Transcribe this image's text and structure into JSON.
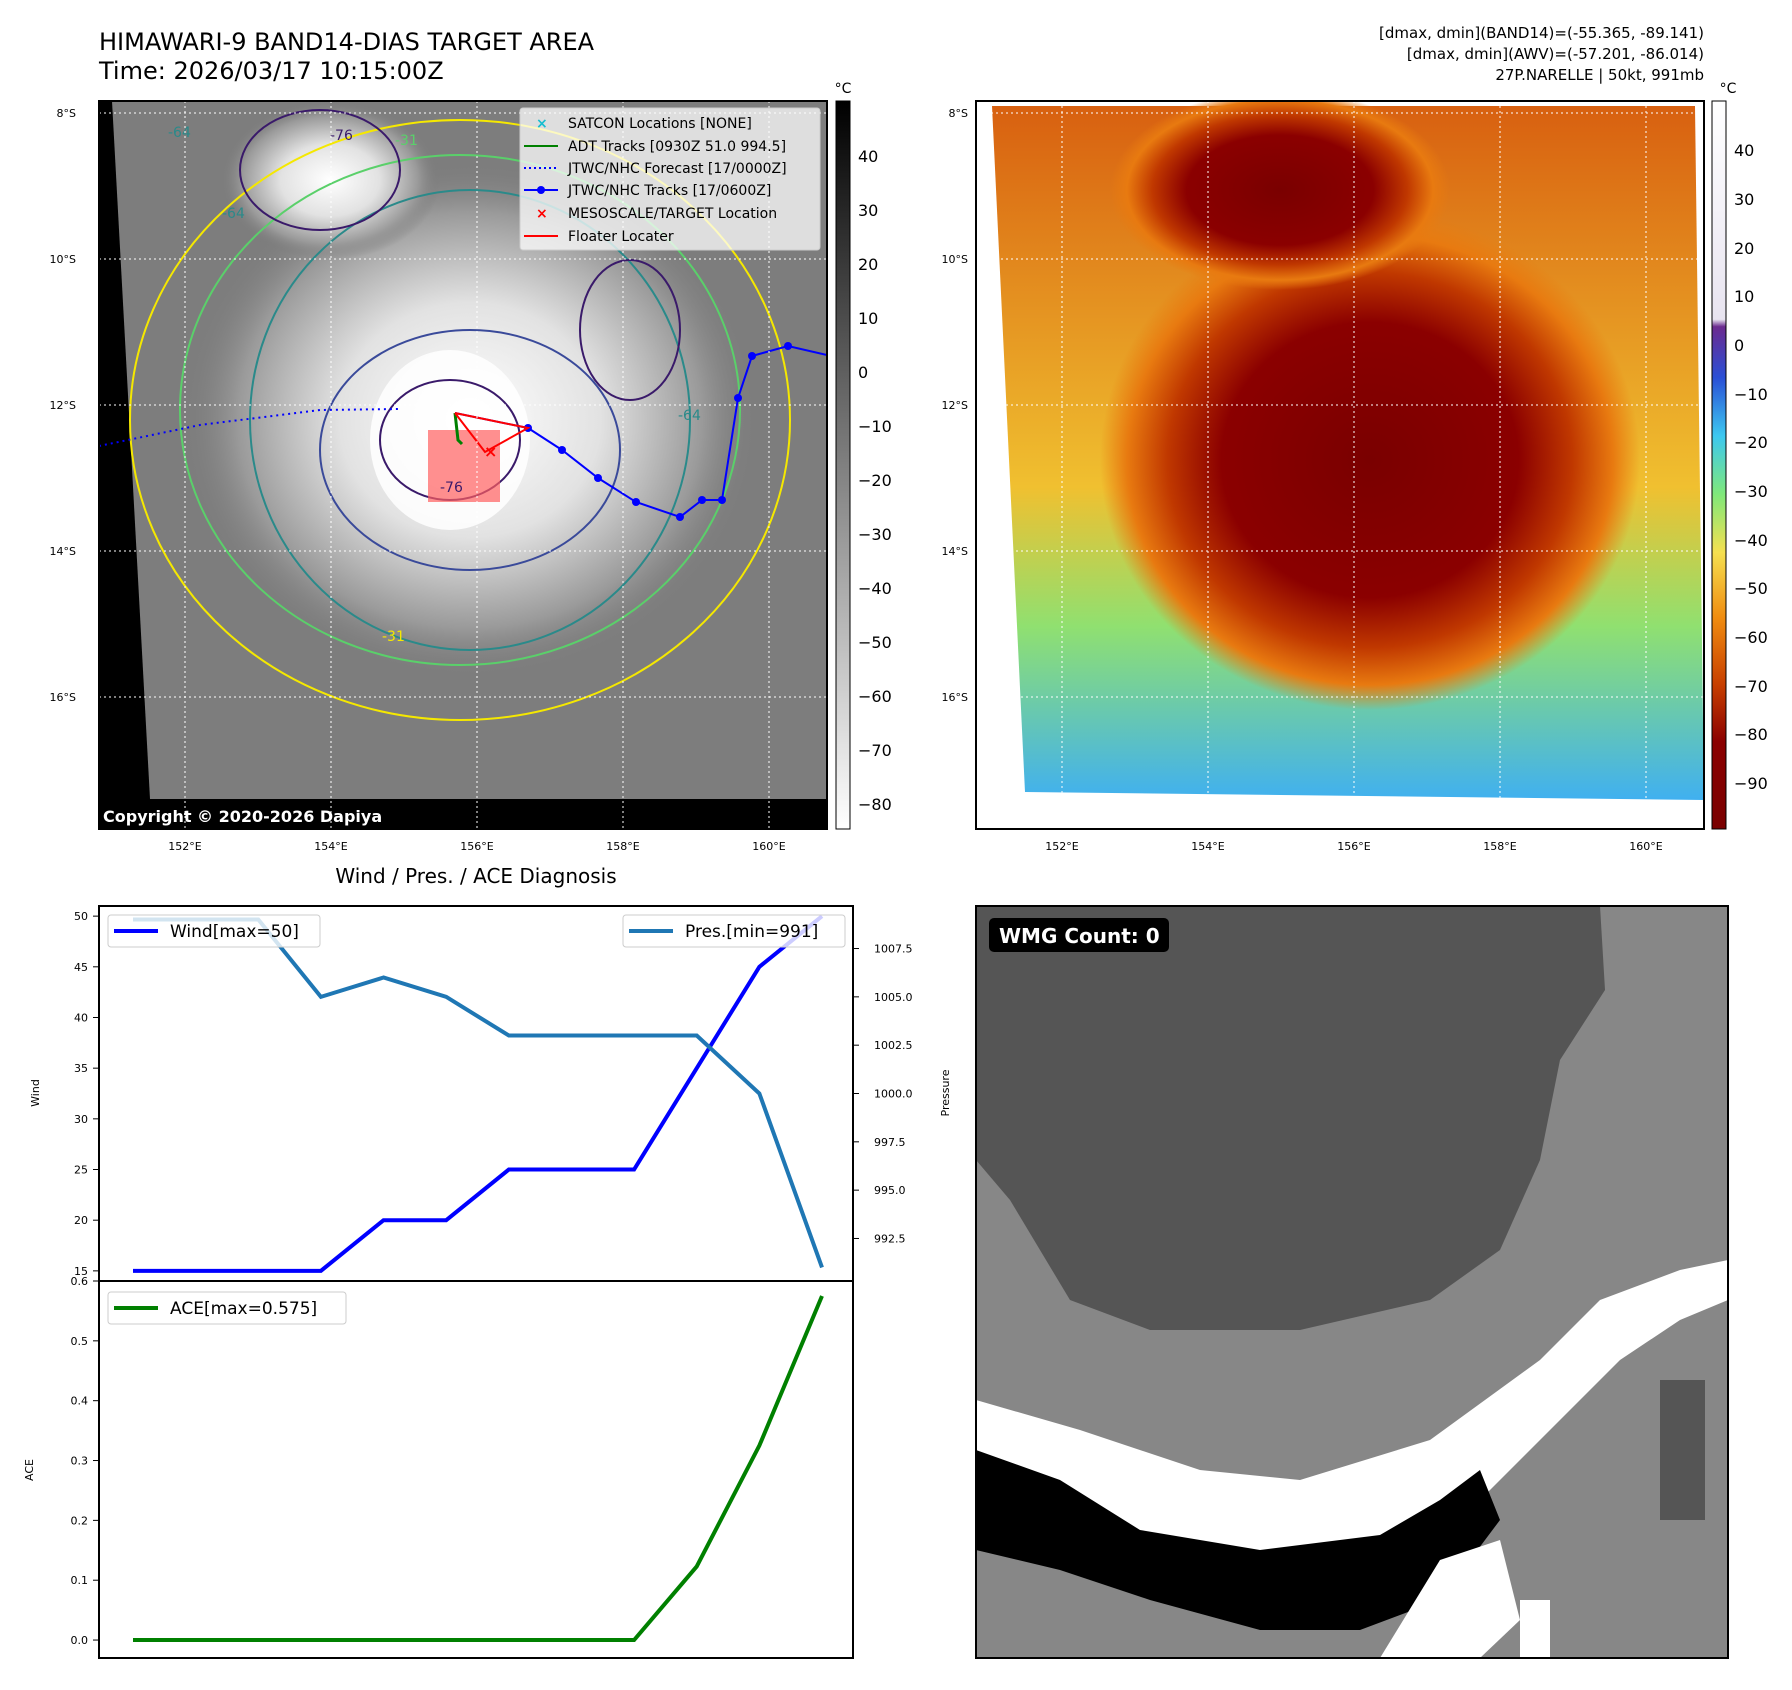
{
  "header": {
    "title": "HIMAWARI-9 BAND14-DIAS TARGET AREA",
    "time": "Time: 2026/03/17 10:15:00Z",
    "stats_band14": "[dmax, dmin](BAND14)=(-55.365, -89.141)",
    "stats_awv": "[dmax, dmin](AWV)=(-57.201, -86.014)",
    "storm": "27P.NARELLE | 50kt, 991mb"
  },
  "map_panel": {
    "copyright": "Copyright © 2020-2026 Dapiya",
    "lat_labels": [
      "8°S",
      "10°S",
      "12°S",
      "14°S",
      "16°S"
    ],
    "lon_labels": [
      "152°E",
      "154°E",
      "156°E",
      "158°E",
      "160°E"
    ],
    "contour_labels": [
      "-64",
      "-76",
      "-31",
      "-64",
      "-76",
      "-31",
      "-64"
    ],
    "legend": [
      {
        "label": "SATCON Locations [NONE]",
        "marker": "x",
        "color": "#17becf"
      },
      {
        "label": "ADT Tracks [0930Z 51.0 994.5]",
        "marker": "line",
        "color": "#008000"
      },
      {
        "label": "JTWC/NHC Forecast [17/0000Z]",
        "marker": "dotted",
        "color": "#0000ff"
      },
      {
        "label": "JTWC/NHC Tracks [17/0600Z]",
        "marker": "line-dot",
        "color": "#0000ff"
      },
      {
        "label": "MESOSCALE/TARGET Location",
        "marker": "x",
        "color": "#ff0000"
      },
      {
        "label": "Floater Locater",
        "marker": "line",
        "color": "#ff0000"
      }
    ],
    "cbar": {
      "unit": "°C",
      "ticks": [
        "40",
        "30",
        "20",
        "10",
        "0",
        "−10",
        "−20",
        "−30",
        "−40",
        "−50",
        "−60",
        "−70",
        "−80"
      ]
    }
  },
  "awv_panel": {
    "lat_labels": [
      "8°S",
      "10°S",
      "12°S",
      "14°S",
      "16°S"
    ],
    "lon_labels": [
      "152°E",
      "154°E",
      "156°E",
      "158°E",
      "160°E"
    ],
    "cbar": {
      "unit": "°C",
      "ticks": [
        "40",
        "30",
        "20",
        "10",
        "0",
        "−10",
        "−20",
        "−30",
        "−40",
        "−50",
        "−60",
        "−70",
        "−80",
        "−90"
      ]
    }
  },
  "wmg_panel": {
    "label": "WMG Count: 0"
  },
  "chart_data": [
    {
      "type": "line",
      "title": "Wind / Pres. / ACE Diagnosis",
      "ylabel": "Wind",
      "ylabel_right": "Pressure",
      "ylim": [
        14,
        51
      ],
      "ylim_right": [
        990.3,
        1009.7
      ],
      "yticks": [
        15,
        20,
        25,
        30,
        35,
        40,
        45,
        50
      ],
      "yticks_right": [
        992.5,
        995.0,
        997.5,
        1000.0,
        1002.5,
        1005.0,
        1007.5
      ],
      "x": [
        0,
        1,
        2,
        3,
        4,
        5,
        6,
        7,
        8,
        9,
        10,
        11
      ],
      "series": [
        {
          "name": "Wind[max=50]",
          "color": "#0000ff",
          "axis": "left",
          "values": [
            15,
            15,
            15,
            15,
            20,
            20,
            25,
            25,
            25,
            35,
            45,
            50
          ]
        },
        {
          "name": "Pres.[min=991]",
          "color": "#1f77b4",
          "axis": "right",
          "values": [
            1009,
            1009,
            1009,
            1005,
            1006,
            1005,
            1003,
            1003,
            1003,
            1003,
            1000,
            991
          ]
        }
      ]
    },
    {
      "type": "line",
      "ylabel": "ACE",
      "ylim": [
        -0.03,
        0.6
      ],
      "yticks": [
        0.0,
        0.1,
        0.2,
        0.3,
        0.4,
        0.5,
        0.6
      ],
      "x": [
        0,
        1,
        2,
        3,
        4,
        5,
        6,
        7,
        8,
        9,
        10,
        11
      ],
      "series": [
        {
          "name": "ACE[max=0.575]",
          "color": "#008000",
          "values": [
            0,
            0,
            0,
            0,
            0,
            0,
            0,
            0,
            0,
            0.123,
            0.325,
            0.575
          ]
        }
      ]
    }
  ]
}
